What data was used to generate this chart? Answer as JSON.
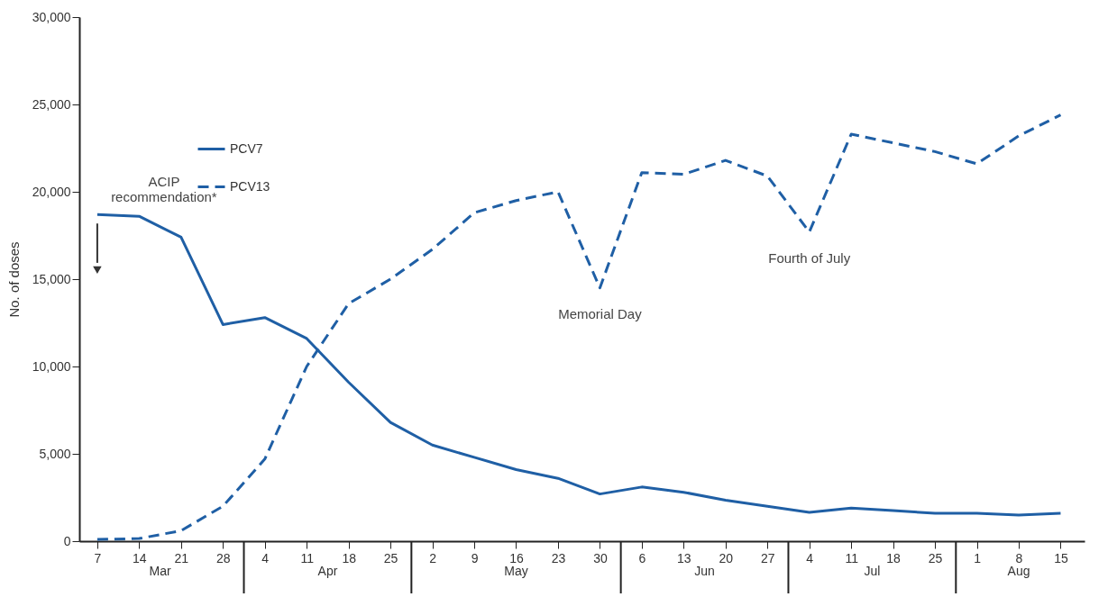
{
  "chart_data": {
    "type": "line",
    "ylabel": "No. of doses",
    "x": [
      "--03-07",
      "--03-14",
      "--03-21",
      "--03-28",
      "--04-04",
      "--04-11",
      "--04-18",
      "--04-25",
      "--05-02",
      "--05-09",
      "--05-16",
      "--05-23",
      "--05-30",
      "--06-06",
      "--06-13",
      "--06-20",
      "--06-27",
      "--07-04",
      "--07-11",
      "--07-18",
      "--07-25",
      "--08-01",
      "--08-08",
      "--08-15"
    ],
    "xlim": [
      "--03-04",
      "--08-19"
    ],
    "xticks": [
      {
        "value": "--03-07",
        "label": "7"
      },
      {
        "value": "--03-14",
        "label": "14"
      },
      {
        "value": "--03-21",
        "label": "21"
      },
      {
        "value": "--03-28",
        "label": "28"
      },
      {
        "value": "--04-04",
        "label": "4"
      },
      {
        "value": "--04-11",
        "label": "11"
      },
      {
        "value": "--04-18",
        "label": "18"
      },
      {
        "value": "--04-25",
        "label": "25"
      },
      {
        "value": "--05-02",
        "label": "2"
      },
      {
        "value": "--05-09",
        "label": "9"
      },
      {
        "value": "--05-16",
        "label": "16"
      },
      {
        "value": "--05-23",
        "label": "23"
      },
      {
        "value": "--05-30",
        "label": "30"
      },
      {
        "value": "--06-06",
        "label": "6"
      },
      {
        "value": "--06-13",
        "label": "13"
      },
      {
        "value": "--06-20",
        "label": "20"
      },
      {
        "value": "--06-27",
        "label": "27"
      },
      {
        "value": "--07-04",
        "label": "4"
      },
      {
        "value": "--07-11",
        "label": "11"
      },
      {
        "value": "--07-18",
        "label": "18"
      },
      {
        "value": "--07-25",
        "label": "25"
      },
      {
        "value": "--08-01",
        "label": "1"
      },
      {
        "value": "--08-08",
        "label": "8"
      },
      {
        "value": "--08-15",
        "label": "15"
      }
    ],
    "ylim": [
      0,
      30000
    ],
    "yticks": [
      {
        "value": 0,
        "label": "0"
      },
      {
        "value": 5000,
        "label": "5,000"
      },
      {
        "value": 10000,
        "label": "10,000"
      },
      {
        "value": 15000,
        "label": "15,000"
      },
      {
        "value": 20000,
        "label": "20,000"
      },
      {
        "value": 25000,
        "label": "25,000"
      },
      {
        "value": 30000,
        "label": "30,000"
      }
    ],
    "series": [
      {
        "name": "PCV7",
        "color": "#1f5fa5",
        "line_style": "solid",
        "values": [
          18700,
          18600,
          17400,
          12400,
          12800,
          11600,
          9100,
          6800,
          5500,
          4800,
          4100,
          3600,
          2700,
          3100,
          2800,
          2350,
          2000,
          1650,
          1900,
          1750,
          1600,
          1600,
          1500,
          1600
        ]
      },
      {
        "name": "PCV13",
        "color": "#1f5fa5",
        "line_style": "dashed",
        "values": [
          100,
          150,
          600,
          2000,
          4700,
          10000,
          13600,
          15000,
          16700,
          18800,
          19500,
          20000,
          14500,
          21100,
          21000,
          21800,
          20900,
          17700,
          23300,
          22800,
          22300,
          21600,
          23200,
          24400
        ]
      }
    ],
    "annotations": [
      {
        "text": "ACIP recommendation*",
        "x": "--03-07",
        "y": 18700
      },
      {
        "text": "Memorial Day",
        "x": "--05-30",
        "y": 14500
      },
      {
        "text": "Fourth of July",
        "x": "--07-04",
        "y": 17700
      },
      "Mar",
      "Apr",
      "May",
      "Jun",
      "Jul",
      "Aug"
    ],
    "grid": false,
    "legend": "top left",
    "marker": "none"
  }
}
